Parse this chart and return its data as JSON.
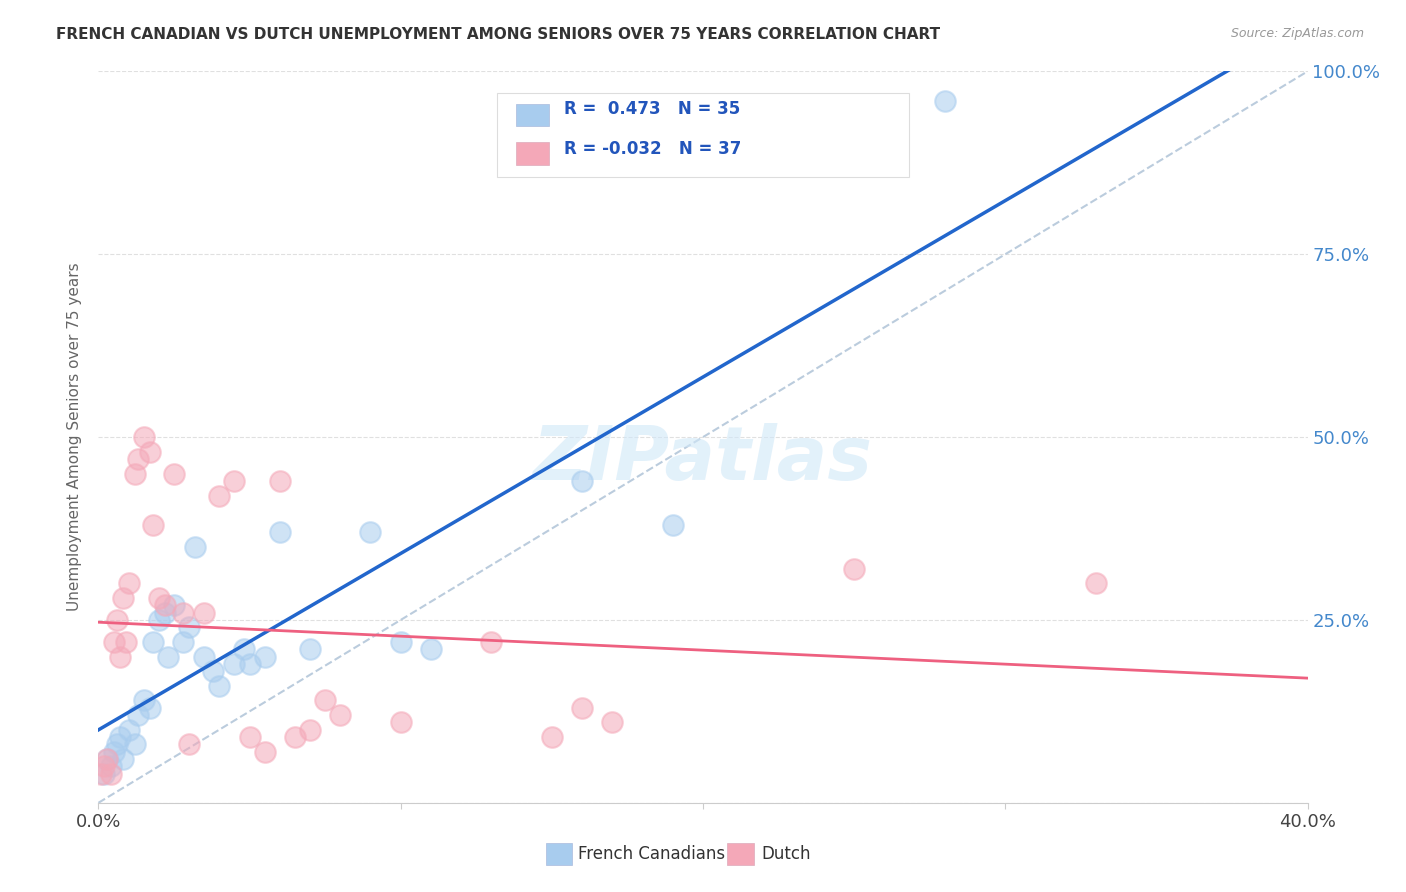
{
  "title": "FRENCH CANADIAN VS DUTCH UNEMPLOYMENT AMONG SENIORS OVER 75 YEARS CORRELATION CHART",
  "source": "Source: ZipAtlas.com",
  "ylabel": "Unemployment Among Seniors over 75 years",
  "xlim": [
    0.0,
    0.4
  ],
  "ylim": [
    0.0,
    1.0
  ],
  "legend_label_blue": "French Canadians",
  "legend_label_pink": "Dutch",
  "r_blue": 0.473,
  "n_blue": 35,
  "r_pink": -0.032,
  "n_pink": 37,
  "blue_color": "#A8CCEE",
  "pink_color": "#F4A8B8",
  "trend_blue": "#2266CC",
  "trend_pink": "#EE6080",
  "ref_line_color": "#BBCCDD",
  "watermark": "ZIPatlas",
  "blue_scatter": [
    [
      0.002,
      0.04
    ],
    [
      0.003,
      0.06
    ],
    [
      0.004,
      0.05
    ],
    [
      0.005,
      0.07
    ],
    [
      0.006,
      0.08
    ],
    [
      0.007,
      0.09
    ],
    [
      0.008,
      0.06
    ],
    [
      0.01,
      0.1
    ],
    [
      0.012,
      0.08
    ],
    [
      0.013,
      0.12
    ],
    [
      0.015,
      0.14
    ],
    [
      0.017,
      0.13
    ],
    [
      0.018,
      0.22
    ],
    [
      0.02,
      0.25
    ],
    [
      0.022,
      0.26
    ],
    [
      0.023,
      0.2
    ],
    [
      0.025,
      0.27
    ],
    [
      0.028,
      0.22
    ],
    [
      0.03,
      0.24
    ],
    [
      0.032,
      0.35
    ],
    [
      0.035,
      0.2
    ],
    [
      0.038,
      0.18
    ],
    [
      0.04,
      0.16
    ],
    [
      0.045,
      0.19
    ],
    [
      0.048,
      0.21
    ],
    [
      0.05,
      0.19
    ],
    [
      0.055,
      0.2
    ],
    [
      0.06,
      0.37
    ],
    [
      0.07,
      0.21
    ],
    [
      0.09,
      0.37
    ],
    [
      0.1,
      0.22
    ],
    [
      0.11,
      0.21
    ],
    [
      0.16,
      0.44
    ],
    [
      0.19,
      0.38
    ],
    [
      0.28,
      0.96
    ]
  ],
  "pink_scatter": [
    [
      0.001,
      0.04
    ],
    [
      0.002,
      0.05
    ],
    [
      0.003,
      0.06
    ],
    [
      0.004,
      0.04
    ],
    [
      0.005,
      0.22
    ],
    [
      0.006,
      0.25
    ],
    [
      0.007,
      0.2
    ],
    [
      0.008,
      0.28
    ],
    [
      0.009,
      0.22
    ],
    [
      0.01,
      0.3
    ],
    [
      0.012,
      0.45
    ],
    [
      0.013,
      0.47
    ],
    [
      0.015,
      0.5
    ],
    [
      0.017,
      0.48
    ],
    [
      0.018,
      0.38
    ],
    [
      0.02,
      0.28
    ],
    [
      0.022,
      0.27
    ],
    [
      0.025,
      0.45
    ],
    [
      0.028,
      0.26
    ],
    [
      0.03,
      0.08
    ],
    [
      0.035,
      0.26
    ],
    [
      0.04,
      0.42
    ],
    [
      0.045,
      0.44
    ],
    [
      0.05,
      0.09
    ],
    [
      0.055,
      0.07
    ],
    [
      0.06,
      0.44
    ],
    [
      0.065,
      0.09
    ],
    [
      0.07,
      0.1
    ],
    [
      0.075,
      0.14
    ],
    [
      0.08,
      0.12
    ],
    [
      0.1,
      0.11
    ],
    [
      0.13,
      0.22
    ],
    [
      0.15,
      0.09
    ],
    [
      0.16,
      0.13
    ],
    [
      0.17,
      0.11
    ],
    [
      0.25,
      0.32
    ],
    [
      0.33,
      0.3
    ]
  ],
  "background_color": "#FFFFFF",
  "grid_color": "#E0E0E0"
}
